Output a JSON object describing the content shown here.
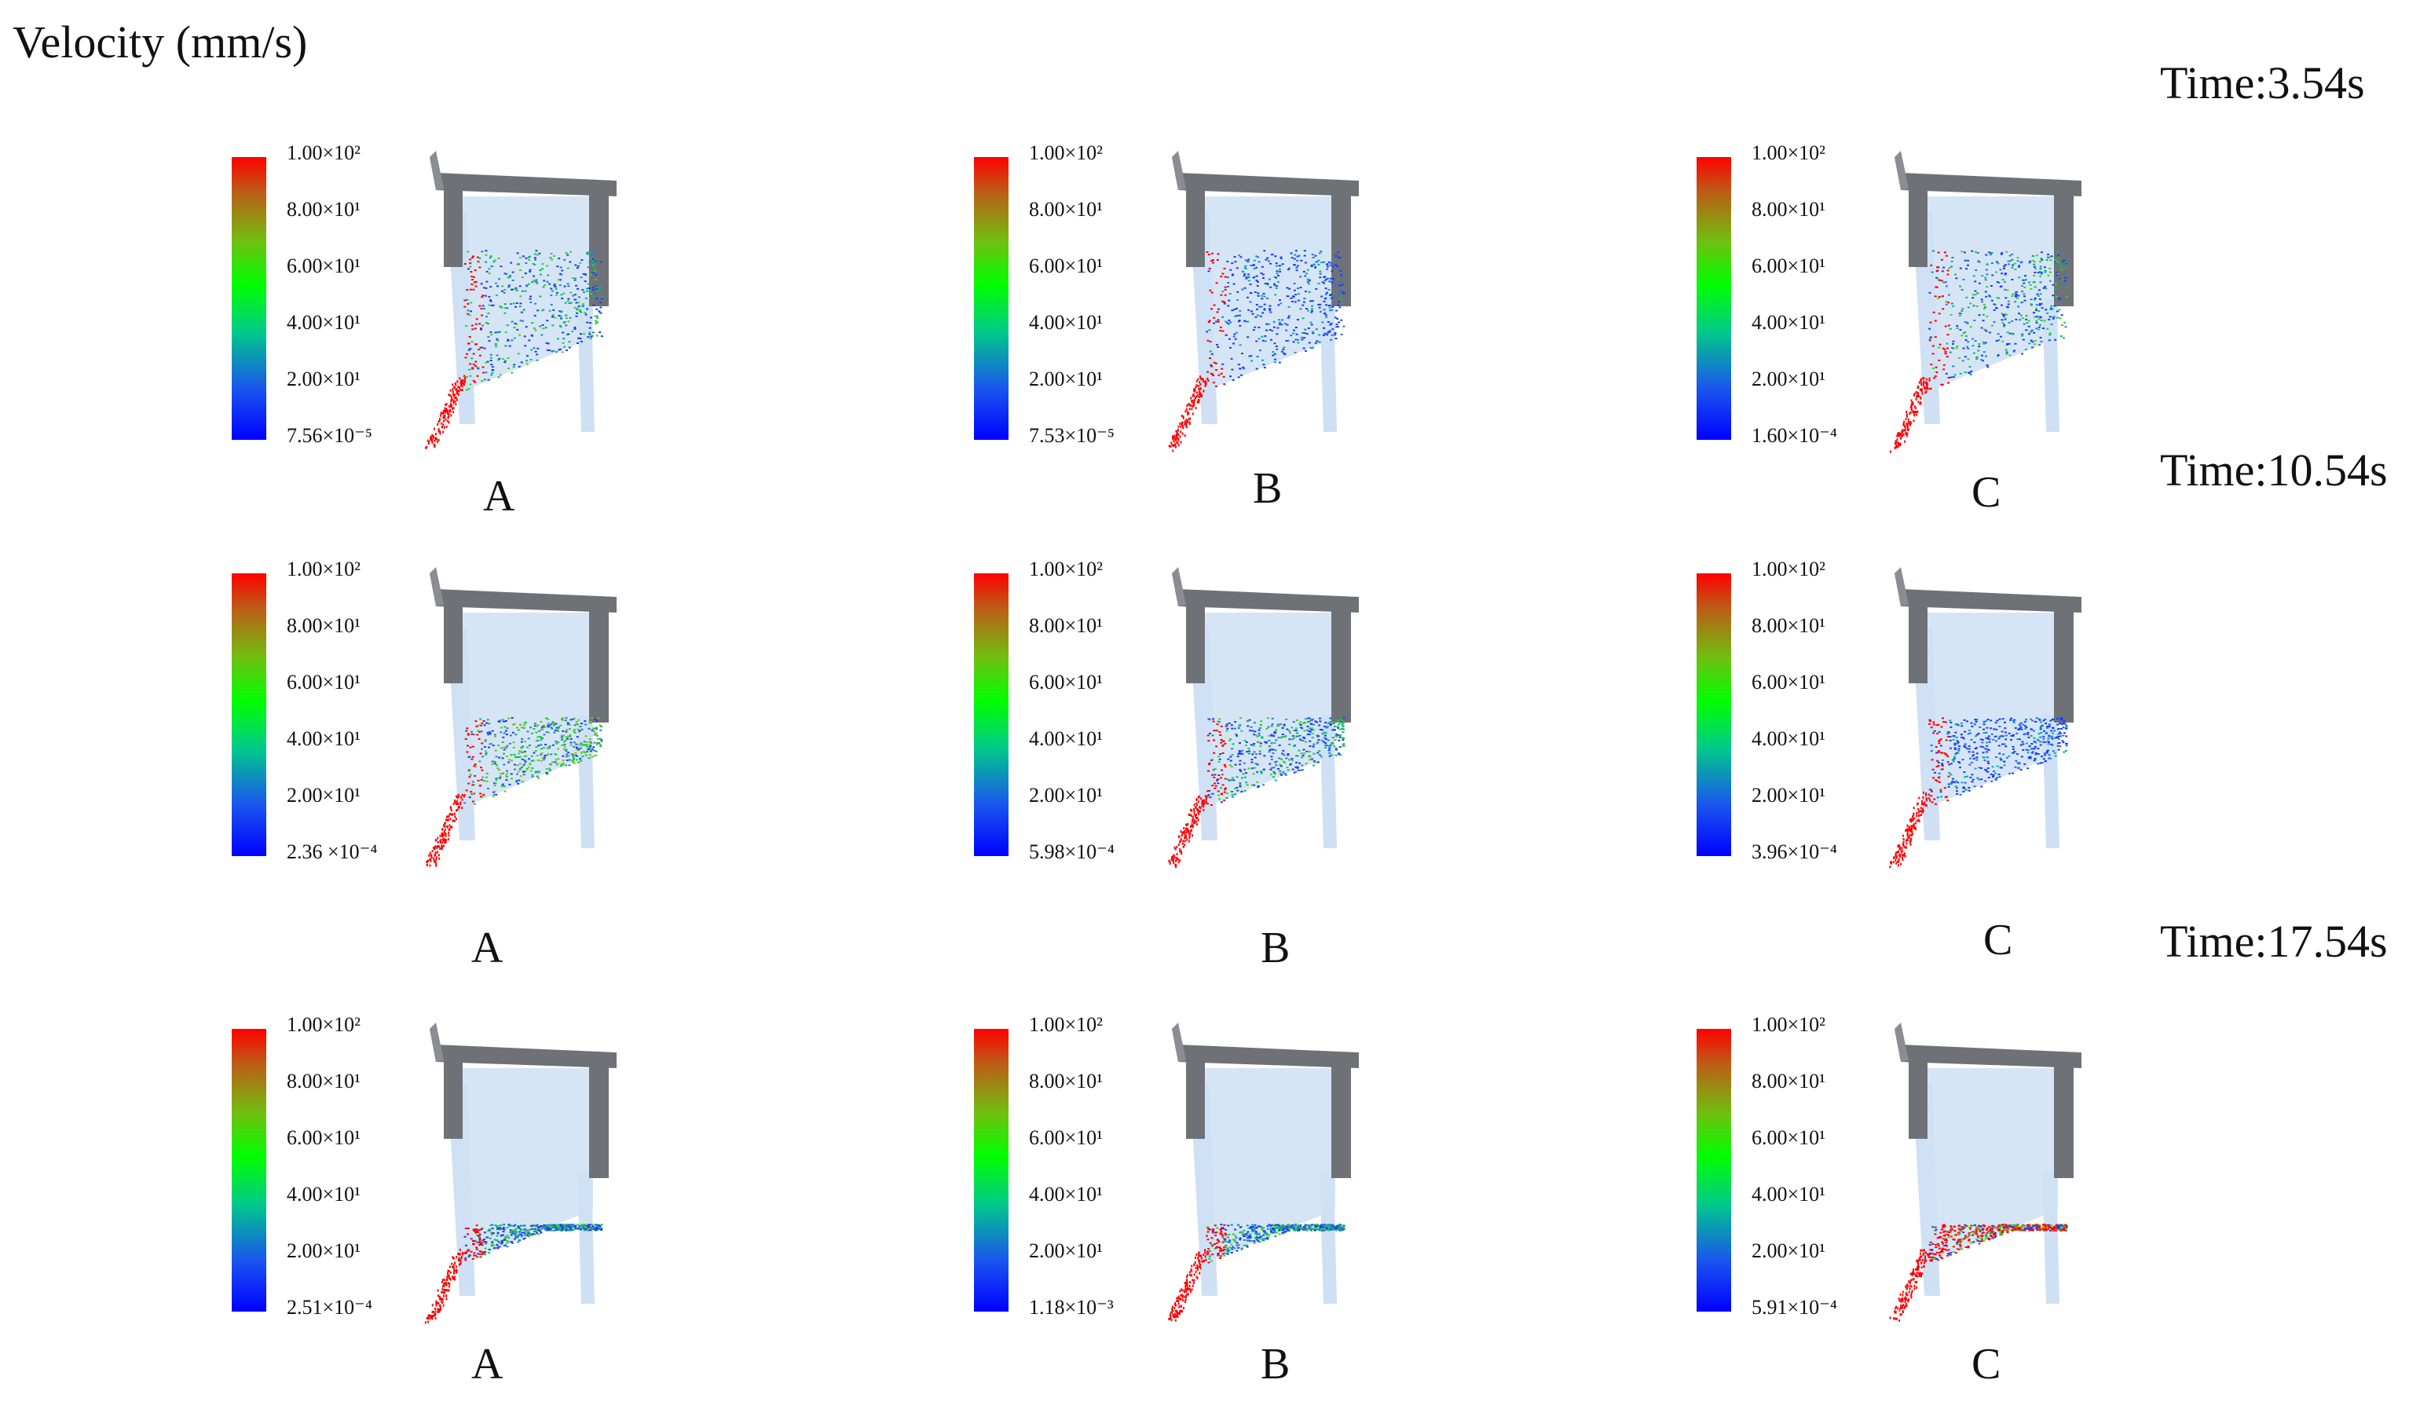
{
  "figure": {
    "title": "Velocity (mm/s)",
    "times": [
      "Time:3.54s",
      "Time:10.54s",
      "Time:17.54s"
    ],
    "colors": {
      "hopper_frame": "#6e7276",
      "hopper_glass": "#cfe0f4",
      "particles_high": "#ff0000",
      "particles_mid": "#00e000",
      "particles_low": "#1a3cff"
    },
    "rows": [
      {
        "panels": [
          {
            "label": "A",
            "ticks": [
              "1.00×10²",
              "8.00×10¹",
              "6.00×10¹",
              "4.00×10¹",
              "2.00×10¹",
              "7.56×10⁻⁵"
            ],
            "fill_level": 0.7,
            "color_mix": "blue-green"
          },
          {
            "label": "B",
            "ticks": [
              "1.00×10²",
              "8.00×10¹",
              "6.00×10¹",
              "4.00×10¹",
              "2.00×10¹",
              "7.53×10⁻⁵"
            ],
            "fill_level": 0.7,
            "color_mix": "blue"
          },
          {
            "label": "C",
            "ticks": [
              "1.00×10²",
              "8.00×10¹",
              "6.00×10¹",
              "4.00×10¹",
              "2.00×10¹",
              "1.60×10⁻⁴"
            ],
            "fill_level": 0.7,
            "color_mix": "blue-green"
          }
        ]
      },
      {
        "panels": [
          {
            "label": "A",
            "ticks": [
              "1.00×10²",
              "8.00×10¹",
              "6.00×10¹",
              "4.00×10¹",
              "2.00×10¹",
              "2.36 ×10⁻⁴"
            ],
            "fill_level": 0.45,
            "color_mix": "green"
          },
          {
            "label": "B",
            "ticks": [
              "1.00×10²",
              "8.00×10¹",
              "6.00×10¹",
              "4.00×10¹",
              "2.00×10¹",
              "5.98×10⁻⁴"
            ],
            "fill_level": 0.45,
            "color_mix": "blue-green"
          },
          {
            "label": "C",
            "ticks": [
              "1.00×10²",
              "8.00×10¹",
              "6.00×10¹",
              "4.00×10¹",
              "2.00×10¹",
              "3.96×10⁻⁴"
            ],
            "fill_level": 0.45,
            "color_mix": "blue"
          }
        ]
      },
      {
        "panels": [
          {
            "label": "A",
            "ticks": [
              "1.00×10²",
              "8.00×10¹",
              "6.00×10¹",
              "4.00×10¹",
              "2.00×10¹",
              "2.51×10⁻⁴"
            ],
            "fill_level": 0.2,
            "color_mix": "blue-green"
          },
          {
            "label": "B",
            "ticks": [
              "1.00×10²",
              "8.00×10¹",
              "6.00×10¹",
              "4.00×10¹",
              "2.00×10¹",
              "1.18×10⁻³"
            ],
            "fill_level": 0.2,
            "color_mix": "blue-green"
          },
          {
            "label": "C",
            "ticks": [
              "1.00×10²",
              "8.00×10¹",
              "6.00×10¹",
              "4.00×10¹",
              "2.00×10¹",
              "5.91×10⁻⁴"
            ],
            "fill_level": 0.2,
            "color_mix": "red"
          }
        ]
      }
    ]
  }
}
